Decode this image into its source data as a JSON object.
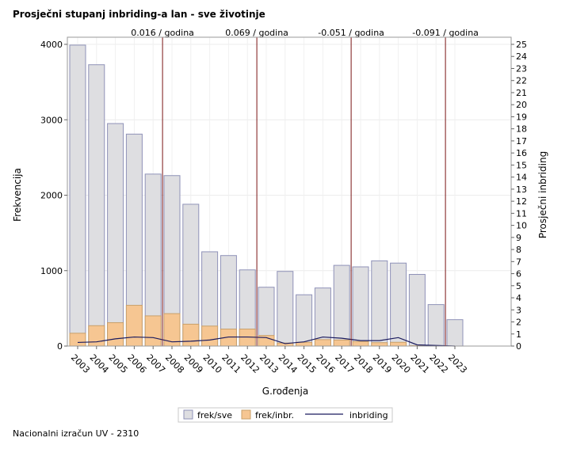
{
  "title": "Prosječni stupanj inbriding-a lan - sve životinje",
  "footer": "Nacionalni izračun UV - 2310",
  "chart_data": {
    "type": "bar",
    "categories": [
      "2003",
      "2004",
      "2005",
      "2006",
      "2007",
      "2008",
      "2009",
      "2010",
      "2011",
      "2012",
      "2013",
      "2014",
      "2015",
      "2016",
      "2017",
      "2018",
      "2019",
      "2020",
      "2021",
      "2022",
      "2023"
    ],
    "series": [
      {
        "name": "frek/sve",
        "type": "bar",
        "color": "#dedee1",
        "stroke": "#8f92b8",
        "values": [
          3990,
          3730,
          2950,
          2810,
          2280,
          2260,
          1880,
          1250,
          1200,
          1010,
          780,
          990,
          680,
          770,
          1070,
          1050,
          1130,
          1100,
          950,
          550,
          350
        ]
      },
      {
        "name": "frek/inbr.",
        "type": "bar",
        "color": "#f6c692",
        "stroke": "#c9a06a",
        "values": [
          170,
          270,
          310,
          540,
          400,
          430,
          290,
          265,
          225,
          225,
          140,
          40,
          50,
          85,
          80,
          60,
          45,
          50,
          5,
          0,
          0
        ]
      },
      {
        "name": "inbriding",
        "type": "line",
        "axis": "right",
        "color": "#1b1b5e",
        "values": [
          0.3,
          0.35,
          0.6,
          0.75,
          0.7,
          0.35,
          0.4,
          0.5,
          0.75,
          0.75,
          0.7,
          0.2,
          0.35,
          0.75,
          0.65,
          0.45,
          0.45,
          0.7,
          0.1,
          0.05,
          0.0
        ]
      }
    ],
    "xlabel": "G.rođenja",
    "ylabel": "Frekvencija",
    "y2label": "Prosječni inbriding",
    "ylim": [
      0,
      4000
    ],
    "yticks": [
      "0",
      "1000",
      "2000",
      "3000",
      "4000"
    ],
    "y2lim": [
      0,
      25
    ],
    "y2ticks": [
      "0",
      "1",
      "2",
      "3",
      "4",
      "5",
      "6",
      "7",
      "8",
      "9",
      "10",
      "11",
      "12",
      "13",
      "14",
      "15",
      "16",
      "17",
      "18",
      "19",
      "20",
      "21",
      "22",
      "23",
      "24",
      "25"
    ],
    "annotations": [
      {
        "after_category": "2007",
        "label": "0.016 / godina"
      },
      {
        "after_category": "2012",
        "label": "0.069 / godina"
      },
      {
        "after_category": "2017",
        "label": "-0.051 / godina"
      },
      {
        "after_category": "2022",
        "label": "-0.091 / godina"
      }
    ],
    "grid": true,
    "legend_position": "bottom"
  }
}
